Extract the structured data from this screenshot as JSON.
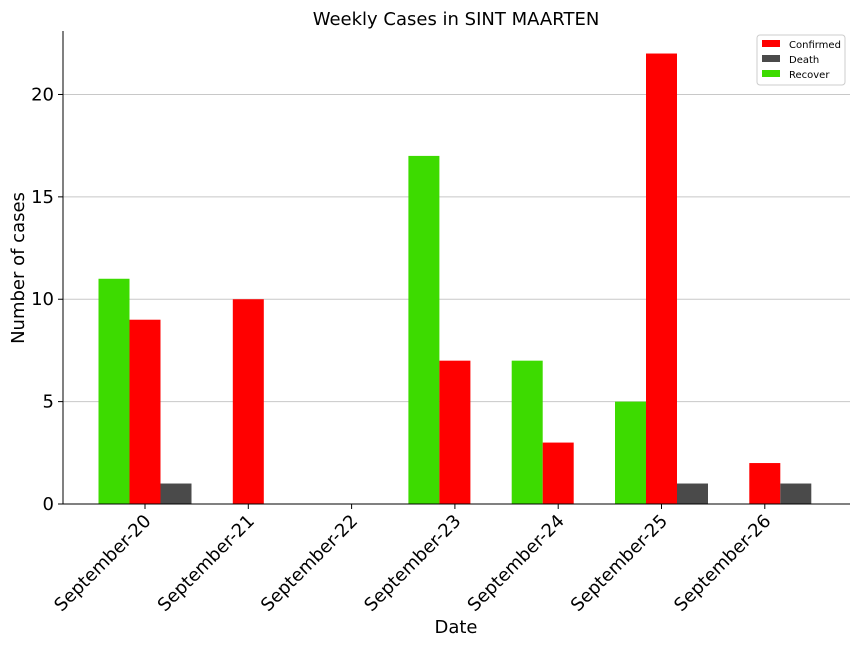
{
  "chart_data": {
    "type": "bar",
    "title": "Weekly Cases in SINT MAARTEN",
    "xlabel": "Date",
    "ylabel": "Number of cases",
    "categories": [
      "September-20",
      "September-21",
      "September-22",
      "September-23",
      "September-24",
      "September-25",
      "September-26"
    ],
    "series": [
      {
        "name": "Recover",
        "color": "#3ddb00",
        "values": [
          11,
          0,
          0,
          17,
          7,
          5,
          0
        ]
      },
      {
        "name": "Confirmed",
        "color": "#ff0000",
        "values": [
          9,
          10,
          0,
          7,
          3,
          22,
          2
        ]
      },
      {
        "name": "Death",
        "color": "#4a4a4a",
        "values": [
          1,
          0,
          0,
          0,
          0,
          1,
          1
        ]
      }
    ],
    "legend_order": [
      "Confirmed",
      "Death",
      "Recover"
    ],
    "ylim": [
      0,
      23.1
    ],
    "yticks": [
      0,
      5,
      10,
      15,
      20
    ],
    "grid": "horizontal",
    "legend_position": "top-right"
  }
}
